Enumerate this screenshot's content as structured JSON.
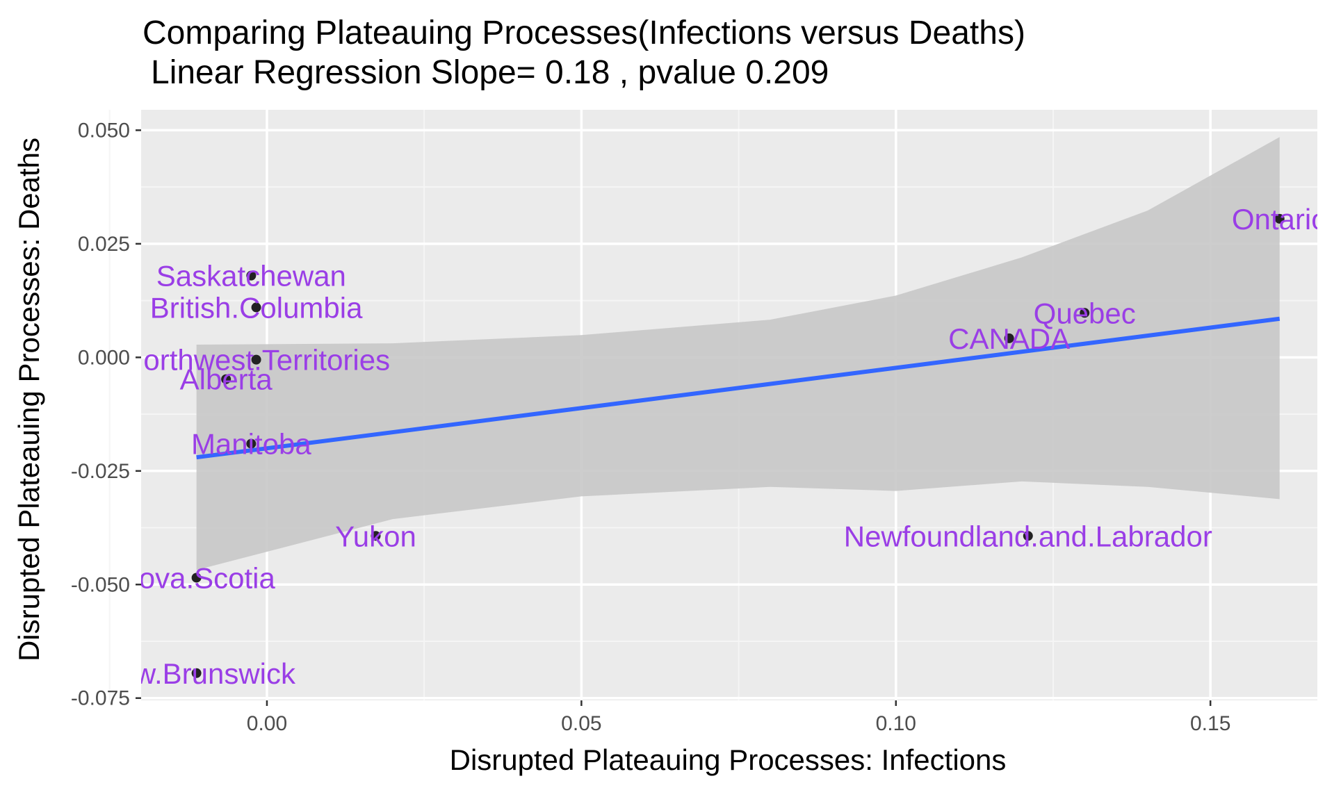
{
  "chart_data": {
    "type": "scatter",
    "title": "Comparing Plateauing Processes(Infections versus Deaths)",
    "subtitle": "Linear Regression Slope= 0.18 , pvalue 0.209",
    "xlabel": "Disrupted Plateauing Processes: Infections",
    "ylabel": "Disrupted Plateauing Processes: Deaths",
    "xlim": [
      -0.02,
      0.167
    ],
    "ylim": [
      -0.0755,
      0.0545
    ],
    "x_ticks": [
      0.0,
      0.05,
      0.1,
      0.15
    ],
    "x_tick_labels": [
      "0.00",
      "0.05",
      "0.10",
      "0.15"
    ],
    "x_minor_ticks": [
      -0.025,
      0.025,
      0.075,
      0.125
    ],
    "y_ticks": [
      0.05,
      0.025,
      0.0,
      -0.025,
      -0.05,
      -0.075
    ],
    "y_tick_labels": [
      "0.050",
      "0.025",
      "0.000",
      "-0.025",
      "-0.050",
      "-0.075"
    ],
    "y_minor_ticks": [
      0.0375,
      0.0125,
      -0.0125,
      -0.0375,
      -0.0625
    ],
    "grid": true,
    "legend": "none",
    "points": [
      {
        "label": "Saskatchewan",
        "x": -0.0025,
        "y": 0.018
      },
      {
        "label": "British.Columbia",
        "x": -0.0017,
        "y": 0.011
      },
      {
        "label": "Northwest.Territories",
        "x": -0.0017,
        "y": -0.0005
      },
      {
        "label": "Alberta",
        "x": -0.0065,
        "y": -0.0048
      },
      {
        "label": "Manitoba",
        "x": -0.0025,
        "y": -0.019
      },
      {
        "label": "Yukon",
        "x": 0.0173,
        "y": -0.0393
      },
      {
        "label": "Nova.Scotia",
        "x": -0.0112,
        "y": -0.0485
      },
      {
        "label": "New.Brunswick",
        "x": -0.0112,
        "y": -0.0695
      },
      {
        "label": "Ontario",
        "x": 0.161,
        "y": 0.0305
      },
      {
        "label": "Quebec",
        "x": 0.13,
        "y": 0.0098
      },
      {
        "label": "CANADA",
        "x": 0.118,
        "y": 0.0042
      },
      {
        "label": "Newfoundland.and.Labrador",
        "x": 0.121,
        "y": -0.0393
      }
    ],
    "regression_line": {
      "x": [
        -0.0112,
        0.161
      ],
      "y": [
        -0.022,
        0.0085
      ]
    },
    "confidence_band": {
      "x": [
        -0.0112,
        0.02,
        0.05,
        0.08,
        0.1,
        0.12,
        0.14,
        0.161
      ],
      "upper": [
        0.0028,
        0.0031,
        0.0049,
        0.0083,
        0.0136,
        0.022,
        0.0323,
        0.0485
      ],
      "lower": [
        -0.0468,
        -0.0356,
        -0.0306,
        -0.0285,
        -0.0294,
        -0.0273,
        -0.0285,
        -0.0312
      ]
    },
    "colors": {
      "panel_background": "#ebebeb",
      "grid_major": "#ffffff",
      "grid_minor": "#f5f5f5",
      "point": "#222222",
      "point_label": "#9a3ee6",
      "regression_line": "#3366ff",
      "confidence_band": "#c8c8c8",
      "tick": "#333333"
    }
  }
}
